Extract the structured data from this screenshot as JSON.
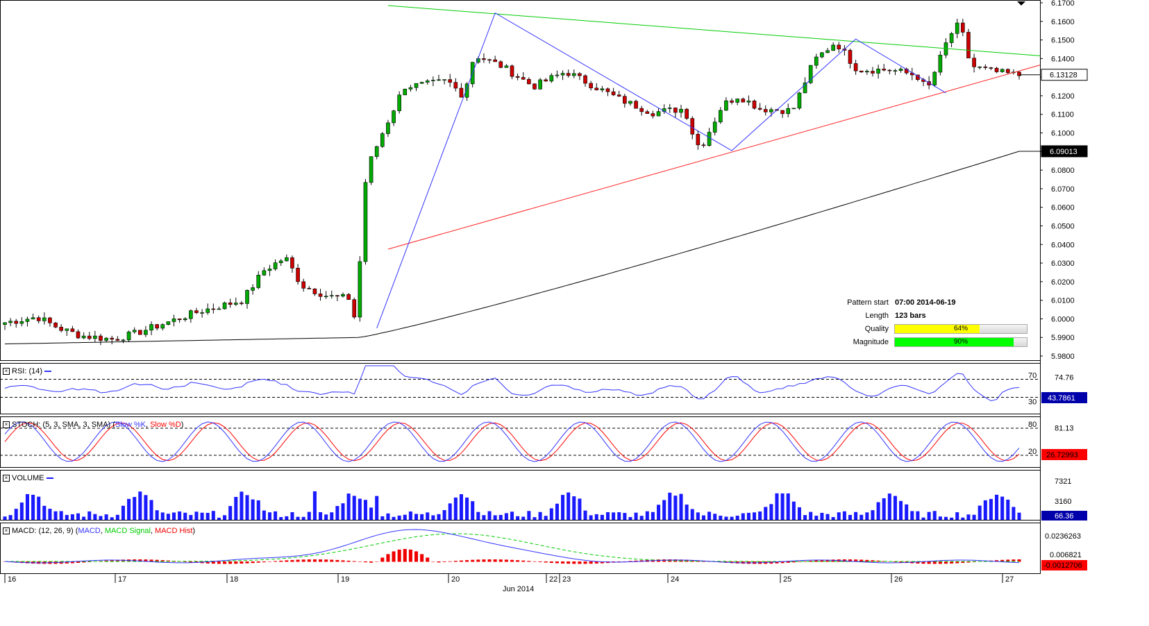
{
  "chart_data": {
    "type": "candlestick",
    "price_axis": {
      "min": 5.98,
      "max": 6.17,
      "ticks": [
        "6.1700",
        "6.1600",
        "6.1500",
        "6.1400",
        "6.1300",
        "6.1200",
        "6.1100",
        "6.1000",
        "6.0900",
        "6.0800",
        "6.0700",
        "6.0600",
        "6.0500",
        "6.0400",
        "6.0300",
        "6.0200",
        "6.0100",
        "6.0000",
        "5.9900",
        "5.9800"
      ],
      "current_price_label": "6.13128",
      "current_price": 6.13128,
      "ma_label": "6.09013",
      "ma_value": 6.09013
    },
    "x_axis": {
      "date_labels": [
        "16",
        "17",
        "18",
        "19",
        "20",
        "22",
        "23",
        "24",
        "25",
        "26",
        "27"
      ],
      "month_label": "Jun 2014"
    },
    "pattern_lines": {
      "resistance": {
        "color": "#00cc00",
        "from": {
          "bar": 0,
          "price": 6.1685
        },
        "to": {
          "bar": 180,
          "price": 6.1415
        }
      },
      "support": {
        "color": "#ff2020",
        "from": {
          "bar": 0,
          "price": 6.0375
        },
        "to": {
          "bar": 180,
          "price": 6.1365
        }
      },
      "zigzag": {
        "color": "#3333ff",
        "points": [
          {
            "bar": 0,
            "price": 5.995
          },
          {
            "bar": 20,
            "price": 6.1645
          },
          {
            "bar": 60,
            "price": 6.0905
          },
          {
            "bar": 82,
            "price": 6.1505
          },
          {
            "bar": 100,
            "price": 6.1215
          }
        ]
      }
    },
    "pattern_info": {
      "pattern_start_label": "Pattern start",
      "pattern_start_value": "07:00 2014-06-19",
      "length_label": "Length",
      "length_value": "123 bars",
      "quality_label": "Quality",
      "quality_value": 64,
      "quality_text": "64%",
      "magnitude_label": "Magnitude",
      "magnitude_value": 90,
      "magnitude_text": "90%"
    },
    "rsi": {
      "title": "RSI: (14)",
      "levels": [
        70,
        30
      ],
      "level_labels": [
        "70",
        "30"
      ],
      "axis_label": "74.76",
      "current": "43.7861"
    },
    "stoch": {
      "title_prefix": "STOCH: (5, 3, SMA, 3, SMA) (",
      "k_name": "Slow %K",
      "d_name": "Slow %D",
      "title_suffix": ")",
      "levels": [
        80,
        20
      ],
      "level_labels": [
        "80",
        "20"
      ],
      "axis_label": "81.13",
      "current": "26.72993"
    },
    "volume": {
      "title": "VOLUME",
      "axis_labels": [
        "7321",
        "3160"
      ],
      "current": "66.36"
    },
    "macd": {
      "title_prefix": "MACD: (12, 26, 9) (",
      "macd_name": "MACD",
      "signal_name": "MACD Signal",
      "hist_name": "MACD Hist",
      "title_suffix": ")",
      "axis_labels": [
        "0.0236263",
        "0.006821"
      ],
      "current": "-0.0012706"
    },
    "colors": {
      "up": "#00aa00",
      "down": "#cc0000",
      "ma": "#000000",
      "rsi": "#3333ff",
      "stoch_k": "#3333ff",
      "stoch_d": "#ff0000",
      "volume": "#1a1aff",
      "macd": "#3333ff",
      "signal": "#00cc00",
      "hist": "#ee0000",
      "quality_fill": "#ffff00",
      "magnitude_fill": "#00ff00"
    }
  }
}
